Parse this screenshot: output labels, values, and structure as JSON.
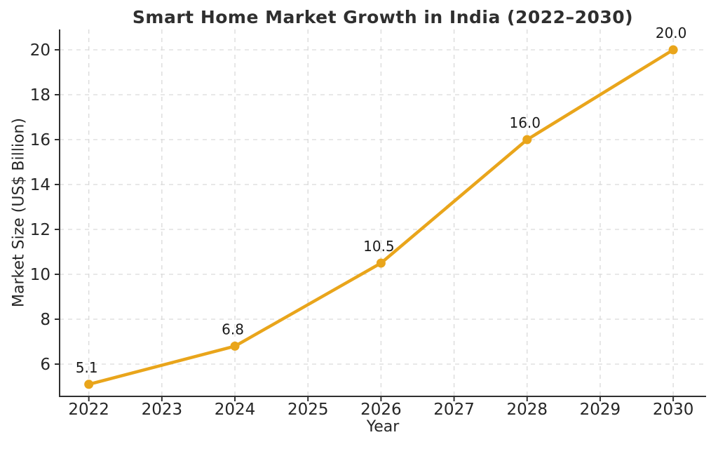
{
  "figure": {
    "background": "#FFFFFF"
  },
  "chart_data": {
    "type": "line",
    "title": "Smart Home Market Growth in India (2022–2030)",
    "xlabel": "Year",
    "ylabel": "Market Size (US$ Billion)",
    "x": [
      2022,
      2024,
      2026,
      2028,
      2030
    ],
    "values": [
      5.1,
      6.8,
      10.5,
      16.0,
      20.0
    ],
    "point_labels": [
      "5.1",
      "6.8",
      "10.5",
      "16.0",
      "20.0"
    ],
    "x_ticks": [
      2022,
      2023,
      2024,
      2025,
      2026,
      2027,
      2028,
      2029,
      2030
    ],
    "y_ticks": [
      6,
      8,
      10,
      12,
      14,
      16,
      18,
      20
    ],
    "xlim": [
      2021.6,
      2030.45
    ],
    "ylim": [
      4.5625,
      20.906
    ],
    "grid": true,
    "grid_style": "dashed",
    "legend_position": "none",
    "colors": {
      "line": "#E9A51B",
      "marker": "#E9A51B",
      "grid": "#D9D9D9",
      "axis": "#303030",
      "tick_text": "#262626",
      "title_text": "#2F2F2F",
      "annotation_text": "#1A1A1A",
      "background": "#FFFFFF"
    }
  }
}
